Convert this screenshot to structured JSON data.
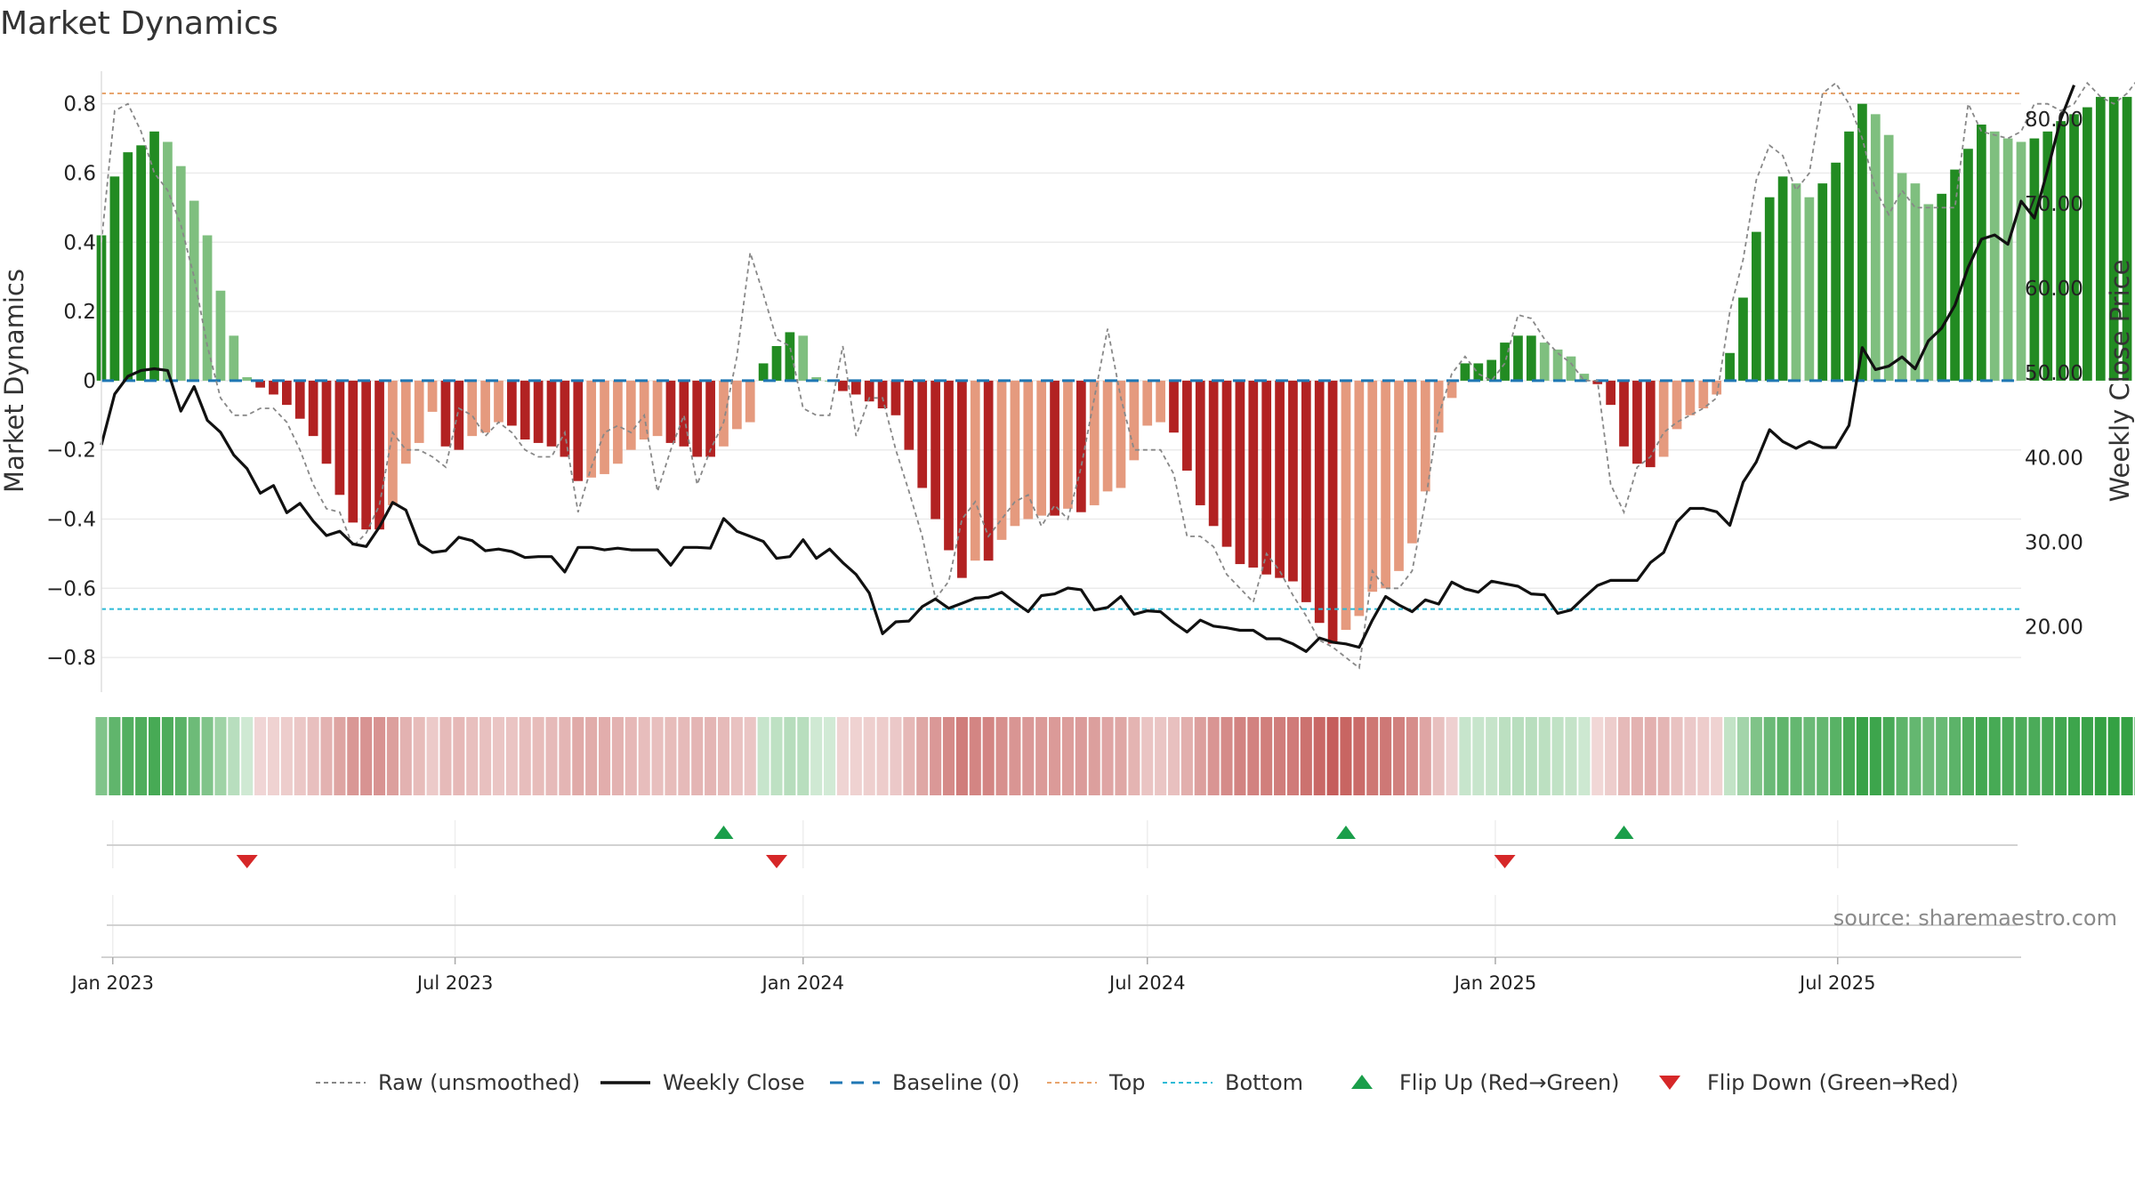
{
  "chart_data": {
    "type": "bar",
    "title": "Market Dynamics",
    "source": "source: sharemaestro.com",
    "left_axis": {
      "label": "Market Dynamics",
      "ylim": [
        -0.9,
        0.92
      ],
      "ticks": [
        0.8,
        0.6,
        0.4,
        0.2,
        0,
        -0.2,
        -0.4,
        -0.6,
        -0.8
      ],
      "tick_labels": [
        "0.8",
        "0.6",
        "0.4",
        "0.2",
        "0",
        "−0.2",
        "−0.4",
        "−0.6",
        "−0.8"
      ]
    },
    "right_axis": {
      "label": "Weekly Close Price",
      "ylim": [
        12.3,
        86.7
      ],
      "ticks": [
        80,
        70,
        60,
        50,
        40,
        30,
        20
      ],
      "tick_labels": [
        "80.00",
        "70.00",
        "60.00",
        "50.00",
        "40.00",
        "30.00",
        "20.00"
      ]
    },
    "x_axis": {
      "start": "2022-12-26",
      "end": "2025-10-06",
      "ticks": [
        "2023-01-01",
        "2023-07-01",
        "2024-01-01",
        "2024-07-01",
        "2025-01-01",
        "2025-07-01"
      ],
      "tick_labels": [
        "Jan 2023",
        "Jul 2023",
        "Jan 2024",
        "Jul 2024",
        "Jan 2025",
        "Jul 2025"
      ]
    },
    "week_start": "2022-12-26",
    "smoothed": [
      0.42,
      0.59,
      0.66,
      0.68,
      0.72,
      0.69,
      0.62,
      0.52,
      0.42,
      0.26,
      0.13,
      0.01,
      -0.02,
      -0.04,
      -0.07,
      -0.11,
      -0.16,
      -0.24,
      -0.33,
      -0.41,
      -0.43,
      -0.43,
      -0.36,
      -0.24,
      -0.18,
      -0.09,
      -0.19,
      -0.2,
      -0.16,
      -0.15,
      -0.12,
      -0.13,
      -0.17,
      -0.18,
      -0.19,
      -0.22,
      -0.29,
      -0.28,
      -0.27,
      -0.24,
      -0.2,
      -0.17,
      -0.16,
      -0.18,
      -0.19,
      -0.22,
      -0.22,
      -0.19,
      -0.14,
      -0.12,
      0.05,
      0.1,
      0.14,
      0.13,
      0.01,
      0,
      -0.03,
      -0.04,
      -0.06,
      -0.08,
      -0.1,
      -0.2,
      -0.31,
      -0.4,
      -0.49,
      -0.57,
      -0.52,
      -0.52,
      -0.46,
      -0.42,
      -0.4,
      -0.39,
      -0.39,
      -0.37,
      -0.38,
      -0.36,
      -0.32,
      -0.31,
      -0.23,
      -0.13,
      -0.12,
      -0.15,
      -0.26,
      -0.36,
      -0.42,
      -0.48,
      -0.53,
      -0.54,
      -0.56,
      -0.57,
      -0.58,
      -0.64,
      -0.7,
      -0.76,
      -0.72,
      -0.68,
      -0.61,
      -0.6,
      -0.55,
      -0.47,
      -0.32,
      -0.15,
      -0.05,
      0.05,
      0.05,
      0.06,
      0.11,
      0.13,
      0.13,
      0.11,
      0.09,
      0.07,
      0.02,
      -0.01,
      -0.07,
      -0.19,
      -0.24,
      -0.25,
      -0.22,
      -0.14,
      -0.1,
      -0.08,
      -0.04,
      0.08,
      0.24,
      0.43,
      0.53,
      0.59,
      0.57,
      0.53,
      0.57,
      0.63,
      0.72,
      0.8,
      0.77,
      0.71,
      0.6,
      0.57,
      0.51,
      0.54,
      0.61,
      0.67,
      0.74,
      0.72,
      0.7,
      0.69,
      0.7,
      0.72,
      0.75,
      0.77,
      0.79,
      0.82,
      0.82,
      0.82,
      0.82,
      0.83,
      0.84
    ],
    "raw": [
      0.4,
      0.78,
      0.8,
      0.72,
      0.6,
      0.55,
      0.45,
      0.3,
      0.1,
      -0.05,
      -0.1,
      -0.1,
      -0.08,
      -0.08,
      -0.12,
      -0.2,
      -0.3,
      -0.37,
      -0.38,
      -0.48,
      -0.44,
      -0.36,
      -0.15,
      -0.2,
      -0.2,
      -0.22,
      -0.25,
      -0.08,
      -0.1,
      -0.16,
      -0.12,
      -0.15,
      -0.2,
      -0.22,
      -0.22,
      -0.15,
      -0.38,
      -0.25,
      -0.15,
      -0.13,
      -0.15,
      -0.1,
      -0.32,
      -0.2,
      -0.1,
      -0.3,
      -0.2,
      -0.12,
      0.07,
      0.37,
      0.25,
      0.12,
      0.1,
      -0.08,
      -0.1,
      -0.1,
      0.1,
      -0.16,
      -0.05,
      -0.05,
      -0.2,
      -0.32,
      -0.45,
      -0.63,
      -0.58,
      -0.4,
      -0.35,
      -0.45,
      -0.4,
      -0.35,
      -0.33,
      -0.42,
      -0.36,
      -0.4,
      -0.25,
      -0.05,
      0.15,
      -0.05,
      -0.2,
      -0.2,
      -0.2,
      -0.27,
      -0.45,
      -0.45,
      -0.48,
      -0.56,
      -0.6,
      -0.64,
      -0.5,
      -0.55,
      -0.62,
      -0.68,
      -0.75,
      -0.77,
      -0.8,
      -0.83,
      -0.55,
      -0.6,
      -0.6,
      -0.55,
      -0.35,
      -0.1,
      0.02,
      0.07,
      0.02,
      0,
      0.05,
      0.19,
      0.18,
      0.12,
      0.08,
      0.05,
      0,
      0,
      -0.3,
      -0.38,
      -0.25,
      -0.22,
      -0.15,
      -0.12,
      -0.1,
      -0.08,
      -0.05,
      0.2,
      0.35,
      0.58,
      0.68,
      0.65,
      0.55,
      0.6,
      0.83,
      0.86,
      0.8,
      0.7,
      0.55,
      0.48,
      0.55,
      0.5,
      0.5,
      0.5,
      0.5,
      0.8,
      0.72,
      0.71,
      0.7,
      0.72,
      0.8,
      0.8,
      0.78,
      0.8,
      0.86,
      0.82,
      0.8,
      0.83,
      0.88
    ],
    "close": [
      41.5,
      47.5,
      49.6,
      50.3,
      50.5,
      50.3,
      45.5,
      48.4,
      44.4,
      43.0,
      40.3,
      38.7,
      35.8,
      36.7,
      33.5,
      34.6,
      32.5,
      30.8,
      31.3,
      29.8,
      29.5,
      31.8,
      34.7,
      33.8,
      29.8,
      28.8,
      29.0,
      30.6,
      30.2,
      29.0,
      29.2,
      28.9,
      28.2,
      28.3,
      28.3,
      26.5,
      29.4,
      29.4,
      29.1,
      29.3,
      29.1,
      29.1,
      29.1,
      27.3,
      29.4,
      29.4,
      29.3,
      32.8,
      31.3,
      30.7,
      30.1,
      28.1,
      28.3,
      30.3,
      28.1,
      29.2,
      27.6,
      26.2,
      24.0,
      19.2,
      20.6,
      20.7,
      22.4,
      23.3,
      22.2,
      22.8,
      23.4,
      23.5,
      24.1,
      22.9,
      21.8,
      23.7,
      23.9,
      24.6,
      24.4,
      22.0,
      22.3,
      23.6,
      21.5,
      21.9,
      21.8,
      20.5,
      19.4,
      20.8,
      20.1,
      19.9,
      19.6,
      19.6,
      18.6,
      18.6,
      18.0,
      17.1,
      18.7,
      18.2,
      18.0,
      17.6,
      20.8,
      23.6,
      22.6,
      21.8,
      23.2,
      22.7,
      25.3,
      24.5,
      24.1,
      25.4,
      25.1,
      24.8,
      23.9,
      23.8,
      21.6,
      22.0,
      23.5,
      24.9,
      25.5,
      25.5,
      25.5,
      27.6,
      28.8,
      32.4,
      34.0,
      34.0,
      33.6,
      32.0,
      37.1,
      39.5,
      43.3,
      41.9,
      41.1,
      41.9,
      41.2,
      41.2,
      43.8,
      53.0,
      50.4,
      50.8,
      51.9,
      50.5,
      53.8,
      55.3,
      58.0,
      62.5,
      65.8,
      66.3,
      65.2,
      70.3,
      68.3,
      74.0,
      80.0,
      84.0
    ],
    "baseline": 0,
    "top": 0.83,
    "bottom": -0.66,
    "flips_up": [
      "2023-11-20",
      "2024-10-14",
      "2025-03-10"
    ],
    "flips_down": [
      "2023-03-13",
      "2023-12-18",
      "2025-01-06"
    ],
    "colors": {
      "strong_pos": "#228B22",
      "weak_pos": "#7FBF7F",
      "strong_neg": "#B22222",
      "weak_neg": "#E59A7E",
      "close": "#111111",
      "raw": "#888888",
      "baseline": "#1F77B4",
      "top": "#E8A56E",
      "bottom": "#2BBAD6",
      "flip_up": "#1A9E4A",
      "flip_down": "#D62728"
    },
    "legend": [
      {
        "label": "Raw (unsmoothed)",
        "style": "raw"
      },
      {
        "label": "Weekly Close",
        "style": "close"
      },
      {
        "label": "Baseline (0)",
        "style": "baseline"
      },
      {
        "label": "Top",
        "style": "top"
      },
      {
        "label": "Bottom",
        "style": "bottom"
      },
      {
        "label": "Flip Up (Red→Green)",
        "style": "flip_up"
      },
      {
        "label": "Flip Down (Green→Red)",
        "style": "flip_down"
      }
    ]
  }
}
